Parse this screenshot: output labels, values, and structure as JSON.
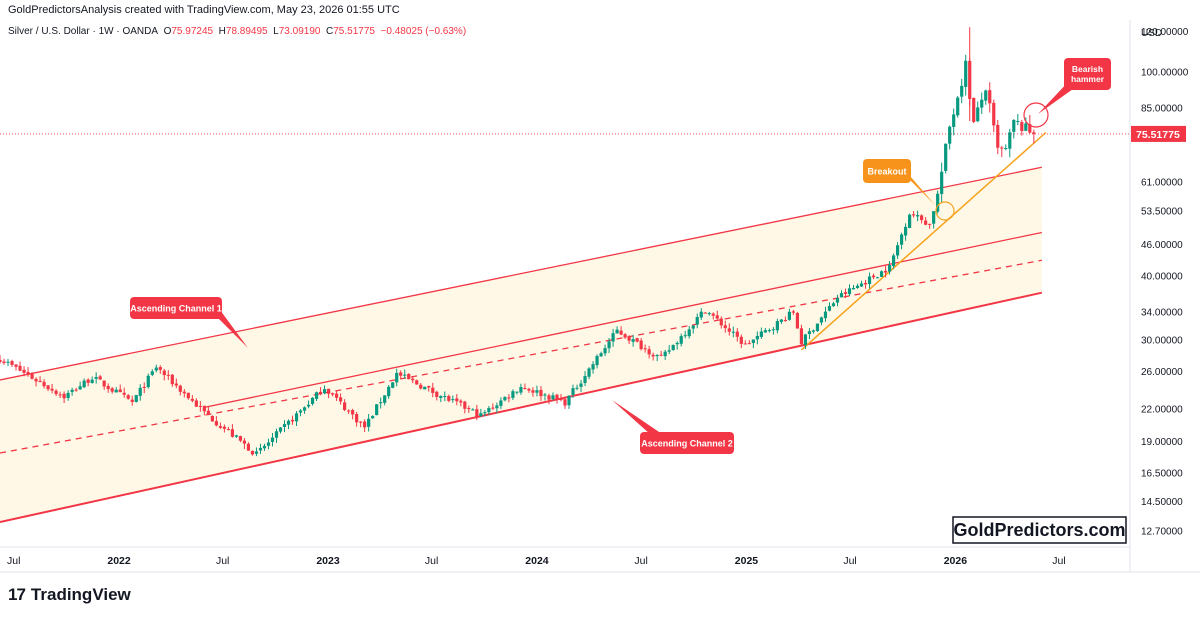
{
  "header": {
    "credit": "GoldPredictorsAnalysis created with TradingView.com, May 23, 2026 01:55 UTC"
  },
  "legend": {
    "symbol": "Silver / U.S. Dollar · 1W · OANDA",
    "o_label": "O",
    "o": "75.97245",
    "h_label": "H",
    "h": "78.89495",
    "l_label": "L",
    "l": "73.09190",
    "c_label": "C",
    "c": "75.51775",
    "change": "−0.48025 (−0.63%)"
  },
  "brand": {
    "name": "TradingView",
    "mark": "17"
  },
  "chart_data": {
    "type": "candlestick",
    "currency": "USD",
    "scale": "log",
    "ylim": [
      11.8,
      126
    ],
    "y_ticks": [
      "120.00000",
      "100.00000",
      "85.00000",
      "75.00000",
      "61.00000",
      "53.50000",
      "46.00000",
      "40.00000",
      "34.00000",
      "30.00000",
      "26.00000",
      "22.00000",
      "19.00000",
      "16.50000",
      "14.50000",
      "12.70000"
    ],
    "x_ticks": [
      "Jul",
      "2022",
      "Jul",
      "2023",
      "Jul",
      "2024",
      "Jul",
      "2025",
      "Jul",
      "2026",
      "Jul"
    ],
    "x_start": "2021-06-07",
    "x_end": "2026-11-02",
    "last_price": "75.51775",
    "colors": {
      "up": "#089981",
      "down": "#f23645",
      "channel": "#f23645",
      "trend": "#f7a21b",
      "fill": "#fff8e6"
    },
    "anchors": [
      [
        "2021-06-07",
        27.5
      ],
      [
        "2021-09-27",
        23.2
      ],
      [
        "2021-11-15",
        25.3
      ],
      [
        "2022-01-24",
        22.6
      ],
      [
        "2022-03-07",
        26.5
      ],
      [
        "2022-05-30",
        21.6
      ],
      [
        "2022-08-29",
        17.9
      ],
      [
        "2022-12-26",
        24.2
      ],
      [
        "2023-03-06",
        20.2
      ],
      [
        "2023-05-01",
        25.7
      ],
      [
        "2023-09-25",
        21.3
      ],
      [
        "2023-12-04",
        24.3
      ],
      [
        "2024-02-19",
        22.6
      ],
      [
        "2024-05-20",
        31.2
      ],
      [
        "2024-08-05",
        27.5
      ],
      [
        "2024-10-21",
        34.3
      ],
      [
        "2024-12-30",
        29.2
      ],
      [
        "2025-03-24",
        33.9
      ],
      [
        "2025-04-07",
        29.6
      ],
      [
        "2025-06-09",
        36.2
      ],
      [
        "2025-09-08",
        41.5
      ],
      [
        "2025-10-13",
        53.0
      ],
      [
        "2025-11-17",
        50.3
      ],
      [
        "2025-12-01",
        57.5
      ],
      [
        "2025-12-22",
        78.0
      ],
      [
        "2026-01-19",
        103.0
      ],
      [
        "2026-02-02",
        79.0
      ],
      [
        "2026-02-23",
        93.0
      ],
      [
        "2026-03-16",
        70.0
      ],
      [
        "2026-03-30",
        70.0
      ],
      [
        "2026-04-13",
        79.5
      ],
      [
        "2026-05-18",
        75.51775
      ]
    ],
    "channel_1": {
      "upper": [
        [
          "2021-06-07",
          25.0
        ],
        [
          "2026-06-01",
          65.0
        ]
      ],
      "lower": [
        [
          "2021-06-07",
          13.2
        ],
        [
          "2026-06-01",
          37.0
        ]
      ],
      "mid": [
        [
          "2021-06-07",
          18.0
        ],
        [
          "2026-06-01",
          42.8
        ]
      ]
    },
    "channel_2": {
      "upper": [
        [
          "2022-05-30",
          22.1
        ],
        [
          "2026-06-01",
          48.5
        ]
      ]
    },
    "trendline": [
      [
        "2025-04-07",
        28.6
      ],
      [
        "2026-06-08",
        76.0
      ]
    ],
    "annotations": [
      {
        "text": "Ascending Channel 1",
        "color": "#f23645"
      },
      {
        "text": "Ascending Channel 2",
        "color": "#f23645"
      },
      {
        "text": "Breakout",
        "color": "#f7931a"
      },
      {
        "text": "Bearish hammer",
        "color": "#f23645"
      }
    ],
    "watermark": "GoldPredictors.com"
  }
}
